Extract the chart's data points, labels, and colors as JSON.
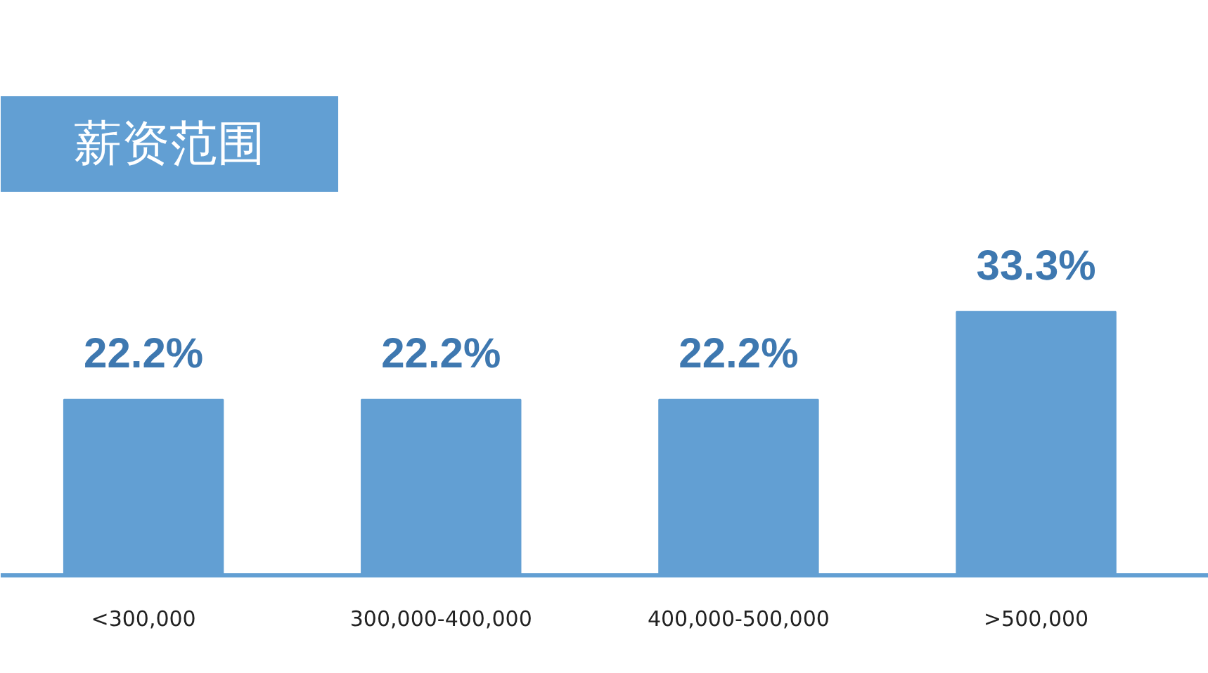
{
  "chart_data": {
    "type": "bar",
    "title": "薪资范围",
    "categories": [
      "<300,000",
      "300,000-400,000",
      "400,000-500,000",
      ">500,000"
    ],
    "values": [
      22.2,
      22.2,
      22.2,
      33.3
    ],
    "value_labels": [
      "22.2%",
      "22.2%",
      "22.2%",
      "33.3%"
    ],
    "color": "#629fd3",
    "grid": false
  }
}
